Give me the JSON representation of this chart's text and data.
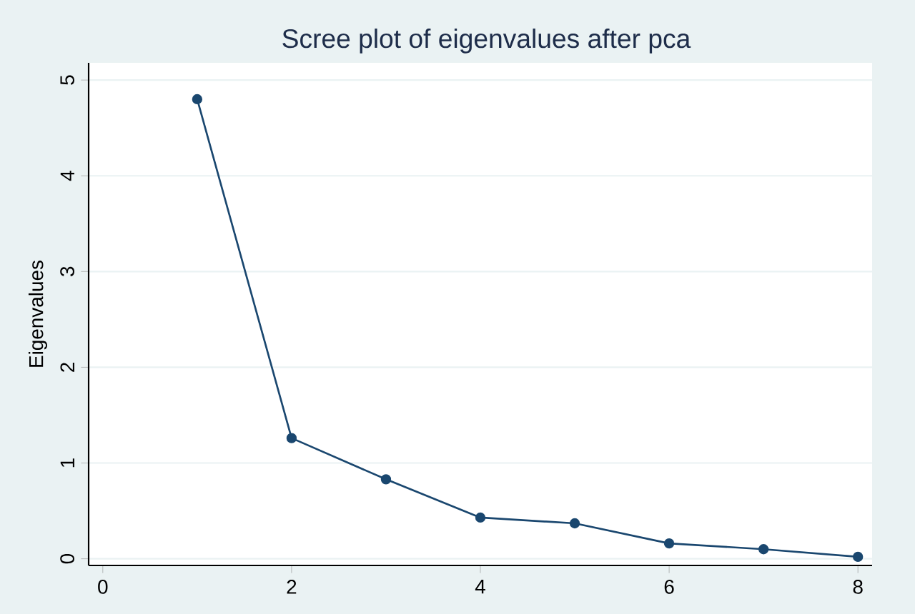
{
  "chart_data": {
    "type": "line",
    "title": "Scree plot of eigenvalues after pca",
    "ylabel": "Eigenvalues",
    "x": [
      1,
      2,
      3,
      4,
      5,
      6,
      7,
      8
    ],
    "series": [
      {
        "color": "#1a476f",
        "values": [
          4.8,
          1.26,
          0.83,
          0.43,
          0.37,
          0.16,
          0.1,
          0.02
        ]
      }
    ],
    "xlim": [
      -0.15,
      8.15
    ],
    "xticks": [
      0,
      2,
      4,
      6,
      8
    ],
    "ylim": [
      -0.07,
      5.18
    ],
    "yticks": [
      0,
      1,
      2,
      3,
      4,
      5
    ],
    "grid": "y",
    "marker": "circle",
    "line_style": "solid"
  }
}
